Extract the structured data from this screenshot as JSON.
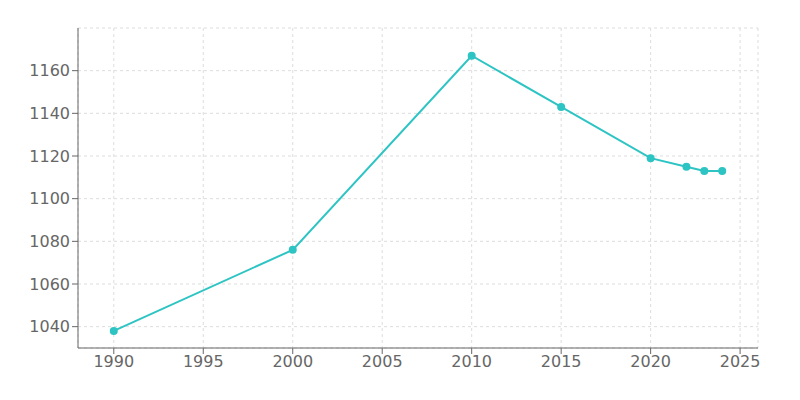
{
  "chart_data": {
    "type": "line",
    "x": [
      1990,
      2000,
      2010,
      2015,
      2020,
      2022,
      2023,
      2024
    ],
    "values": [
      1038,
      1076,
      1167,
      1143,
      1119,
      1115,
      1113,
      1113
    ],
    "color": "#2EC4C4",
    "marker": "circle",
    "xlim": [
      1988,
      2026
    ],
    "ylim": [
      1030,
      1180
    ],
    "xticks": [
      1990,
      1995,
      2000,
      2005,
      2010,
      2015,
      2020,
      2025
    ],
    "yticks": [
      1040,
      1060,
      1080,
      1100,
      1120,
      1140,
      1160
    ],
    "grid": true
  }
}
